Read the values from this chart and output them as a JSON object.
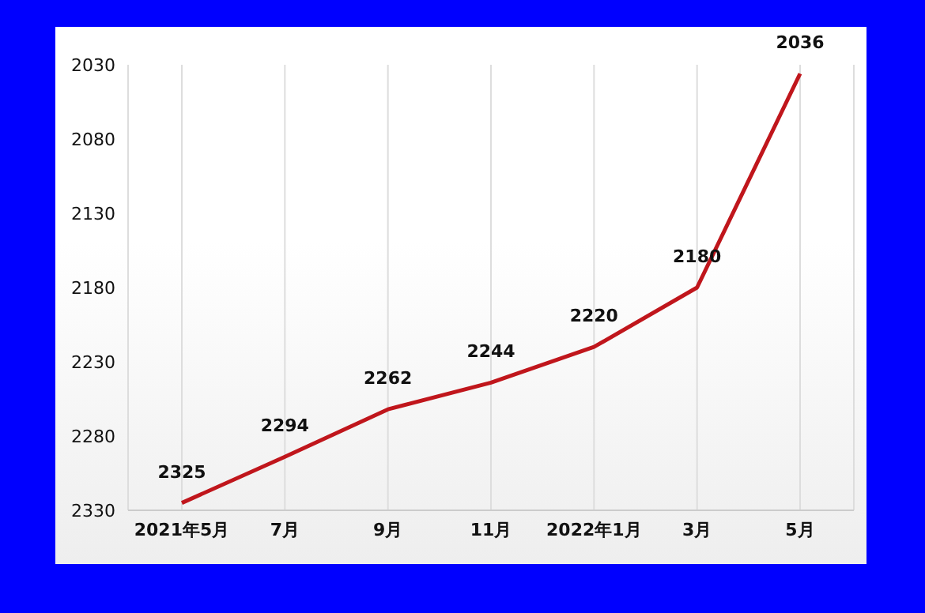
{
  "chart_data": {
    "type": "line",
    "categories": [
      "2021年5月",
      "7月",
      "9月",
      "11月",
      "2022年1月",
      "3月",
      "5月"
    ],
    "series": [
      {
        "color": "#c0161c",
        "values": [
          2325,
          2294,
          2262,
          2244,
          2220,
          2180,
          2036
        ]
      }
    ],
    "ylim": [
      2330,
      2030
    ],
    "yticks": [
      2030,
      2080,
      2130,
      2180,
      2230,
      2280,
      2330
    ],
    "grid": "x",
    "data_labels": true,
    "marker": "none",
    "line_style": "solid"
  }
}
